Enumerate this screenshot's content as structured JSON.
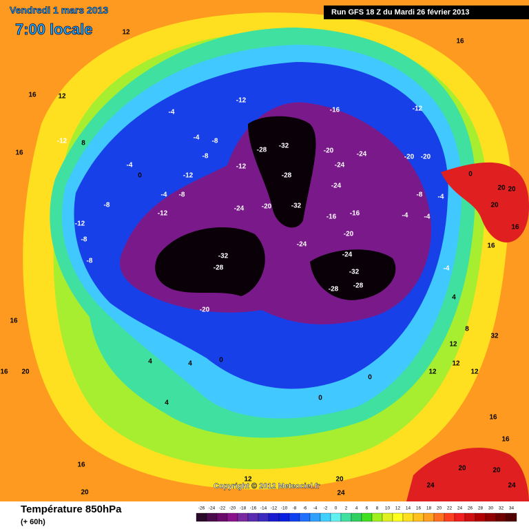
{
  "header": {
    "date": "Vendredi 1 mars 2013",
    "time": "7:00 locale",
    "run": "Run GFS 18 Z du Mardi 26 février 2013"
  },
  "footer": {
    "title": "Température 850hPa",
    "subtitle": "(+ 60h)",
    "copyright": "Copyright © 2012 Meteociel.fr"
  },
  "scale": {
    "values": [
      -26,
      -24,
      -22,
      -20,
      -18,
      -16,
      -14,
      -12,
      -10,
      -8,
      -6,
      -4,
      -2,
      0,
      2,
      4,
      6,
      8,
      10,
      12,
      14,
      16,
      18,
      20,
      22,
      24,
      26,
      28,
      30,
      32,
      34
    ],
    "colors": [
      "#2a0a2a",
      "#4b0a4b",
      "#6a0a6a",
      "#8a128a",
      "#7a2aa0",
      "#5a2ab0",
      "#3a2ac0",
      "#1a1ad0",
      "#0a20e0",
      "#1040f0",
      "#2070ff",
      "#30a0ff",
      "#40d0ff",
      "#60f0f0",
      "#40e0a0",
      "#30d060",
      "#40e020",
      "#a0f020",
      "#e0f020",
      "#ffff20",
      "#ffe020",
      "#ffc020",
      "#ffa020",
      "#ff7020",
      "#ff4020",
      "#f02020",
      "#d01010",
      "#b00000",
      "#900000",
      "#700000",
      "#500000"
    ]
  },
  "map_labels": [
    12,
    16,
    12,
    16,
    -4,
    -12,
    -16,
    -12,
    -12,
    8,
    16,
    -4,
    -4,
    -8,
    -8,
    -12,
    -12,
    0,
    -4,
    -8,
    -8,
    -12,
    -12,
    -8,
    -8,
    -28,
    -32,
    -28,
    -32,
    -24,
    -20,
    -20,
    -24,
    -24,
    -24,
    -16,
    -16,
    -20,
    -24,
    -32,
    -28,
    -24,
    -32,
    -28,
    -28,
    -20,
    -20,
    -20,
    0,
    20,
    20,
    20,
    -8,
    -4,
    -4,
    -4,
    16,
    16,
    -4,
    4,
    8,
    32,
    12,
    12,
    12,
    12,
    16,
    16,
    20,
    4,
    4,
    0,
    4,
    0,
    0,
    16,
    16,
    16,
    12,
    20,
    20,
    20,
    24,
    24,
    24,
    20
  ]
}
